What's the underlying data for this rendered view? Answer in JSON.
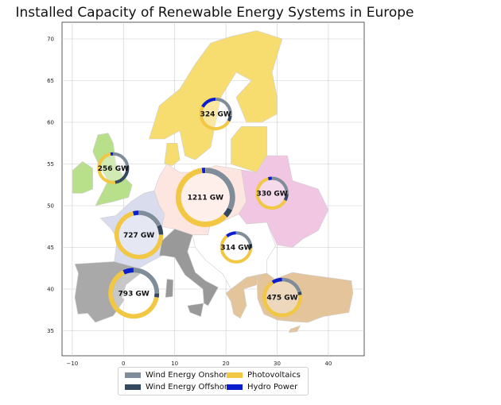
{
  "title": "Installed Capacity of Renewable Energy Systems in Europe",
  "colors": {
    "onshore": "#7f8c99",
    "offshore": "#34495e",
    "pv": "#f2c744",
    "hydro": "#0a1ecc",
    "nordic": "#f7dc6f",
    "uk": "#b8e08a",
    "central": "#fde6e0",
    "east": "#f0c6e2",
    "west": "#d8dcec",
    "iberia": "#a9a9a9",
    "italy": "#999999",
    "southeast": "#e4c49b",
    "balkan": "#ffffff"
  },
  "map": {
    "xlim": [
      -12,
      47
    ],
    "ylim": [
      32,
      72
    ],
    "xticks": [
      "−10",
      "0",
      "10",
      "20",
      "30",
      "40"
    ],
    "yticks": [
      "35",
      "40",
      "45",
      "50",
      "55",
      "60",
      "65",
      "70"
    ]
  },
  "chart_data": {
    "type": "map-donut",
    "title": "Installed Capacity of Renewable Energy Systems in Europe",
    "units": "GW",
    "sources": [
      "Wind Energy Onshore",
      "Wind Energy Offshore",
      "Photovoltaics",
      "Hydro Power"
    ],
    "regions": [
      {
        "lon": 18,
        "lat": 61,
        "total_label": "324 GW",
        "shares": [
          0.27,
          0.06,
          0.5,
          0.17
        ]
      },
      {
        "lon": -2,
        "lat": 54.5,
        "total_label": "256 GW",
        "shares": [
          0.22,
          0.26,
          0.49,
          0.03
        ]
      },
      {
        "lon": 16,
        "lat": 51,
        "total_label": "1211 GW",
        "shares": [
          0.32,
          0.05,
          0.61,
          0.02
        ]
      },
      {
        "lon": 29,
        "lat": 51.5,
        "total_label": "330 GW",
        "shares": [
          0.26,
          0.07,
          0.63,
          0.04
        ]
      },
      {
        "lon": 3,
        "lat": 46.5,
        "total_label": "727 GW",
        "shares": [
          0.18,
          0.07,
          0.71,
          0.04
        ]
      },
      {
        "lon": 22,
        "lat": 45,
        "total_label": "314 GW",
        "shares": [
          0.21,
          0.05,
          0.63,
          0.11
        ]
      },
      {
        "lon": 2,
        "lat": 39.5,
        "total_label": "793 GW",
        "shares": [
          0.25,
          0.03,
          0.65,
          0.07
        ]
      },
      {
        "lon": 31,
        "lat": 39,
        "total_label": "475 GW",
        "shares": [
          0.2,
          0.03,
          0.68,
          0.09
        ]
      }
    ]
  },
  "legend": {
    "items": [
      {
        "label": "Wind Energy Onshore",
        "color_key": "onshore"
      },
      {
        "label": "Wind Energy Offshore",
        "color_key": "offshore"
      },
      {
        "label": "Photovoltaics",
        "color_key": "pv"
      },
      {
        "label": "Hydro Power",
        "color_key": "hydro"
      }
    ]
  }
}
